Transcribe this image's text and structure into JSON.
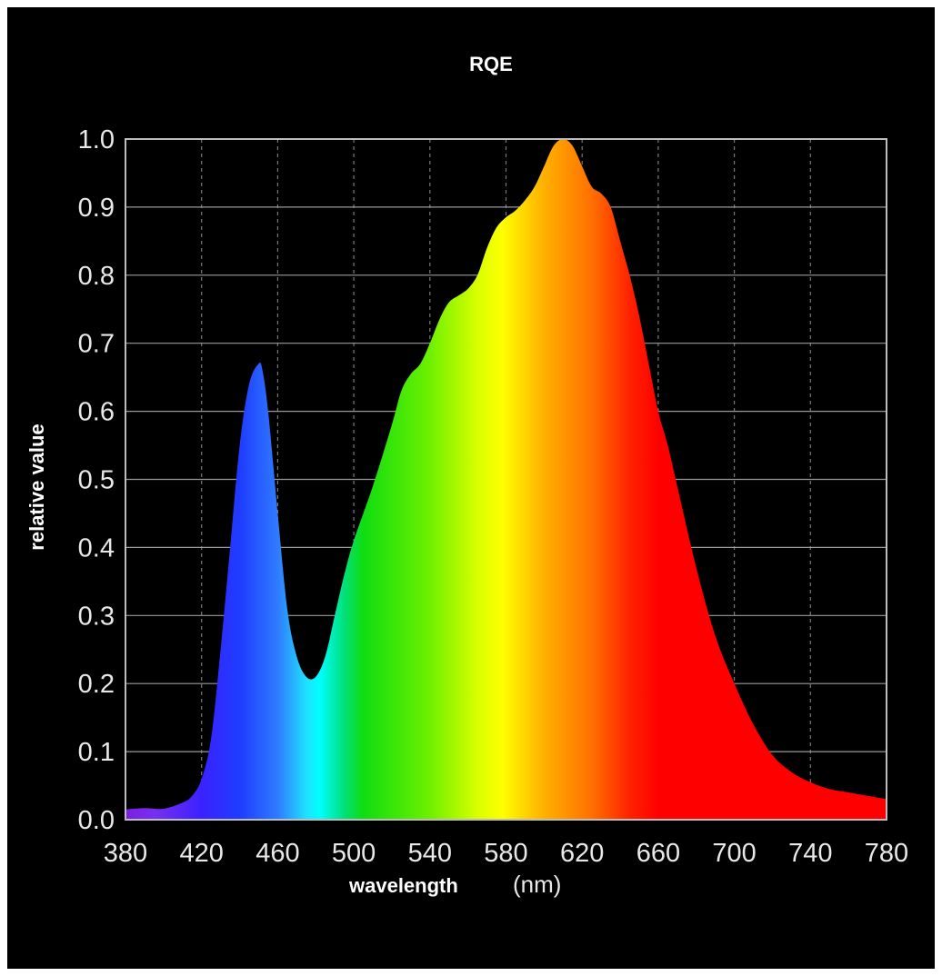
{
  "chart_data": {
    "type": "area",
    "title": "RQE",
    "xlabel": "wavelength",
    "xunit": "(nm)",
    "ylabel": "relative value",
    "xlim": [
      380,
      780
    ],
    "ylim": [
      0.0,
      1.0
    ],
    "grid": true,
    "x_ticks": [
      "380",
      "420",
      "460",
      "500",
      "540",
      "580",
      "620",
      "660",
      "700",
      "740",
      "780"
    ],
    "y_ticks": [
      "0.0",
      "0.1",
      "0.2",
      "0.3",
      "0.4",
      "0.5",
      "0.6",
      "0.7",
      "0.8",
      "0.9",
      "1.0"
    ],
    "fill": "visible-spectrum color gradient",
    "series": [
      {
        "x": [
          380,
          390,
          400,
          410,
          415,
          420,
          425,
          430,
          435,
          440,
          445,
          450,
          452,
          455,
          460,
          465,
          470,
          475,
          480,
          485,
          490,
          495,
          500,
          510,
          520,
          525,
          530,
          535,
          540,
          545,
          550,
          555,
          560,
          565,
          570,
          575,
          580,
          585,
          590,
          595,
          600,
          605,
          610,
          615,
          620,
          625,
          630,
          635,
          640,
          645,
          650,
          655,
          660,
          665,
          670,
          680,
          690,
          700,
          710,
          720,
          730,
          740,
          750,
          760,
          770,
          780
        ],
        "y": [
          0.015,
          0.017,
          0.016,
          0.025,
          0.035,
          0.06,
          0.12,
          0.25,
          0.4,
          0.55,
          0.64,
          0.67,
          0.66,
          0.6,
          0.45,
          0.31,
          0.24,
          0.21,
          0.21,
          0.24,
          0.3,
          0.36,
          0.41,
          0.49,
          0.58,
          0.63,
          0.655,
          0.67,
          0.7,
          0.735,
          0.76,
          0.77,
          0.78,
          0.8,
          0.84,
          0.87,
          0.885,
          0.895,
          0.91,
          0.93,
          0.96,
          0.99,
          1.0,
          0.99,
          0.96,
          0.93,
          0.92,
          0.9,
          0.85,
          0.8,
          0.74,
          0.67,
          0.6,
          0.55,
          0.49,
          0.37,
          0.27,
          0.2,
          0.14,
          0.095,
          0.07,
          0.055,
          0.045,
          0.04,
          0.035,
          0.03
        ]
      }
    ]
  }
}
